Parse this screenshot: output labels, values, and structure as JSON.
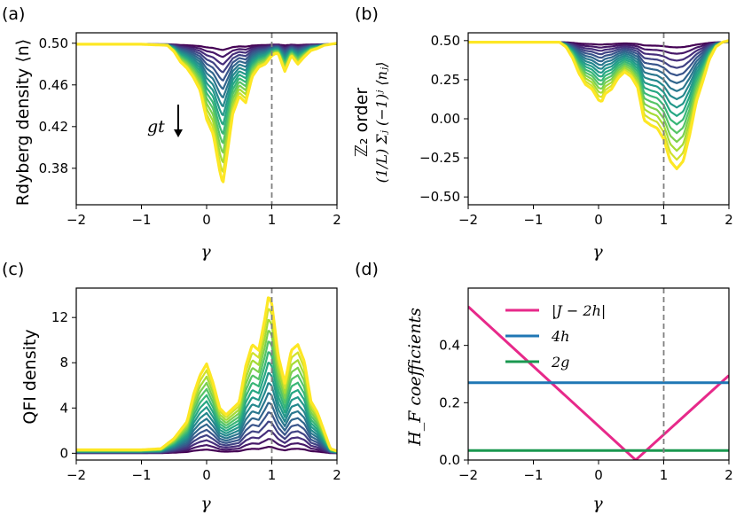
{
  "chart_data": [
    {
      "id": "a",
      "panel_label": "(a)",
      "type": "line",
      "xlabel": "γ",
      "ylabel": "Rdyberg density ⟨n⟩",
      "xlim": [
        -2,
        2
      ],
      "ylim": [
        0.345,
        0.51
      ],
      "xticks": [
        -2,
        -1,
        0,
        1,
        2
      ],
      "xtick_labels": [
        "−2",
        "−1",
        "0",
        "1",
        "2"
      ],
      "yticks": [
        0.38,
        0.42,
        0.46,
        0.5
      ],
      "ytick_labels": [
        "0.38",
        "0.42",
        "0.46",
        "0.50"
      ],
      "vline_x": 1,
      "annotation": "gt",
      "series_count": 16,
      "colormap": "viridis",
      "final_series": {
        "x": [
          -2,
          -1.0,
          -0.6,
          -0.5,
          -0.4,
          -0.3,
          -0.2,
          -0.1,
          0.0,
          0.1,
          0.2,
          0.25,
          0.3,
          0.4,
          0.5,
          0.6,
          0.7,
          0.8,
          0.9,
          1.0,
          1.05,
          1.1,
          1.2,
          1.3,
          1.4,
          1.5,
          1.6,
          1.7,
          1.8,
          1.9,
          2.0
        ],
        "y": [
          0.499,
          0.499,
          0.498,
          0.492,
          0.482,
          0.476,
          0.467,
          0.455,
          0.427,
          0.413,
          0.378,
          0.365,
          0.387,
          0.432,
          0.449,
          0.443,
          0.468,
          0.477,
          0.48,
          0.488,
          0.49,
          0.49,
          0.473,
          0.488,
          0.48,
          0.487,
          0.493,
          0.495,
          0.498,
          0.499,
          0.5
        ]
      }
    },
    {
      "id": "b",
      "panel_label": "(b)",
      "type": "line",
      "xlabel": "γ",
      "ylabel_line1": "ℤ₂ order",
      "ylabel_line2": "(1/L) Σⱼ (−1)ʲ ⟨nⱼ⟩",
      "xlim": [
        -2,
        2
      ],
      "ylim": [
        -0.55,
        0.55
      ],
      "xticks": [
        -2,
        -1,
        0,
        1,
        2
      ],
      "xtick_labels": [
        "−2",
        "−1",
        "0",
        "1",
        "2"
      ],
      "yticks": [
        -0.5,
        -0.25,
        0.0,
        0.25,
        0.5
      ],
      "ytick_labels": [
        "−0.50",
        "−0.25",
        "0.00",
        "0.25",
        "0.50"
      ],
      "vline_x": 1,
      "series_count": 16,
      "colormap": "viridis",
      "final_series": {
        "x": [
          -2,
          -1.0,
          -0.6,
          -0.5,
          -0.4,
          -0.3,
          -0.2,
          -0.1,
          0.0,
          0.05,
          0.1,
          0.2,
          0.3,
          0.4,
          0.5,
          0.6,
          0.7,
          0.8,
          0.9,
          1.0,
          1.1,
          1.2,
          1.3,
          1.4,
          1.5,
          1.6,
          1.7,
          1.8,
          1.9,
          2.0
        ],
        "y": [
          0.49,
          0.49,
          0.49,
          0.46,
          0.39,
          0.29,
          0.22,
          0.19,
          0.12,
          0.11,
          0.16,
          0.19,
          0.26,
          0.3,
          0.27,
          0.2,
          -0.01,
          -0.04,
          -0.06,
          -0.13,
          -0.27,
          -0.32,
          -0.27,
          -0.1,
          0.11,
          0.24,
          0.38,
          0.46,
          0.49,
          0.5
        ]
      }
    },
    {
      "id": "c",
      "panel_label": "(c)",
      "type": "line",
      "xlabel": "γ",
      "ylabel": "QFI density",
      "xlim": [
        -2,
        2
      ],
      "ylim": [
        -0.6,
        14.6
      ],
      "xticks": [
        -2,
        -1,
        0,
        1,
        2
      ],
      "xtick_labels": [
        "−2",
        "−1",
        "0",
        "1",
        "2"
      ],
      "yticks": [
        0,
        4,
        8,
        12
      ],
      "ytick_labels": [
        "0",
        "4",
        "8",
        "12"
      ],
      "vline_x": 1,
      "series_count": 16,
      "colormap": "viridis",
      "final_series": {
        "x": [
          -2,
          -1.0,
          -0.7,
          -0.5,
          -0.3,
          -0.2,
          -0.1,
          0.0,
          0.1,
          0.2,
          0.3,
          0.5,
          0.6,
          0.7,
          0.8,
          0.9,
          0.95,
          1.0,
          1.1,
          1.2,
          1.3,
          1.4,
          1.5,
          1.6,
          1.7,
          1.8,
          1.9,
          2.0
        ],
        "y": [
          0.3,
          0.3,
          0.4,
          1.3,
          2.8,
          5.2,
          6.9,
          7.9,
          6.2,
          4.0,
          3.4,
          4.5,
          7.7,
          9.6,
          9.1,
          12.1,
          13.9,
          13.2,
          8.6,
          6.2,
          9.1,
          9.6,
          8.1,
          4.6,
          3.6,
          2.0,
          0.4,
          0.2
        ]
      }
    },
    {
      "id": "d",
      "panel_label": "(d)",
      "type": "line",
      "xlabel": "γ",
      "ylabel": "H_F coefficients",
      "xlim": [
        -2,
        2
      ],
      "ylim": [
        0,
        0.6
      ],
      "xticks": [
        -2,
        -1,
        0,
        1,
        2
      ],
      "xtick_labels": [
        "−2",
        "−1",
        "0",
        "1",
        "2"
      ],
      "yticks": [
        0.0,
        0.2,
        0.4
      ],
      "ytick_labels": [
        "0.0",
        "0.2",
        "0.4"
      ],
      "vline_x": 1,
      "legend_position": "top-center",
      "series": [
        {
          "name": "|J − 2h|",
          "color": "#e7298a",
          "x": [
            -2,
            0.57,
            2
          ],
          "y": [
            0.535,
            0.0,
            0.295
          ]
        },
        {
          "name": "4h",
          "color": "#1f77b4",
          "x": [
            -2,
            2
          ],
          "y": [
            0.27,
            0.27
          ]
        },
        {
          "name": "2g",
          "color": "#1a9850",
          "x": [
            -2,
            2
          ],
          "y": [
            0.033,
            0.033
          ]
        }
      ]
    }
  ]
}
